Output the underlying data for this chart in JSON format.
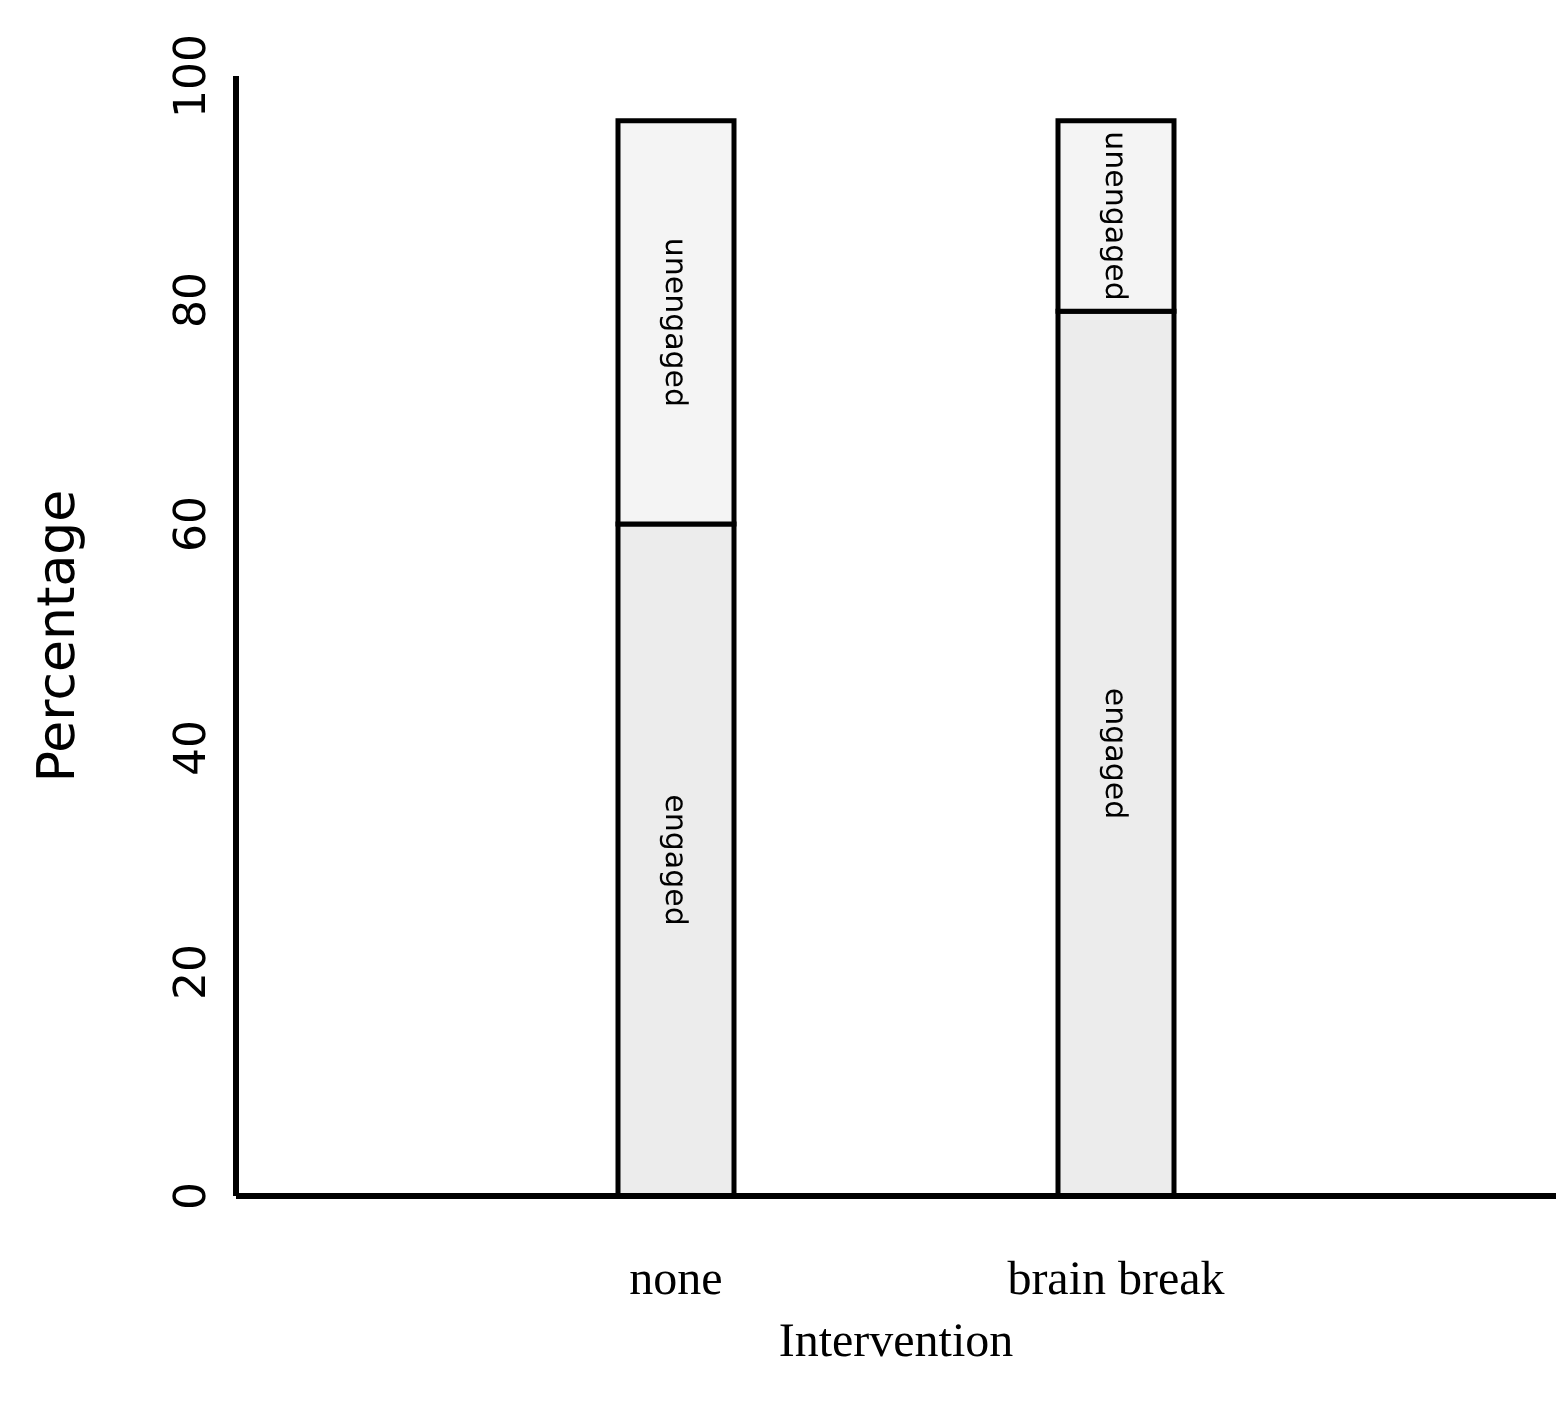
{
  "chart_data": {
    "type": "bar",
    "stacked": true,
    "xlabel": "Intervention",
    "ylabel": "Percentage",
    "categories": [
      "none",
      "brain break"
    ],
    "series": [
      {
        "name": "engaged",
        "color": "#ececec",
        "values": [
          60,
          79
        ]
      },
      {
        "name": "unengaged",
        "color": "#f4f4f4",
        "values": [
          36,
          17
        ]
      }
    ],
    "ylim": [
      0,
      100
    ],
    "yticks": [
      0,
      20,
      40,
      60,
      80,
      100
    ],
    "grid": false,
    "legend": false
  }
}
